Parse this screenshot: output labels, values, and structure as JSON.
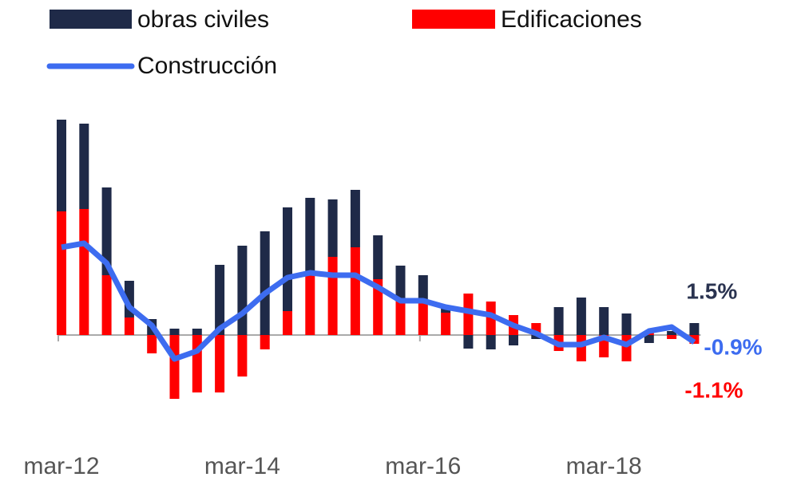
{
  "chart_data": {
    "type": "bar-line",
    "categories": [
      "mar-12",
      null,
      null,
      null,
      null,
      null,
      null,
      null,
      "mar-14",
      null,
      null,
      null,
      null,
      null,
      null,
      null,
      "mar-16",
      null,
      null,
      null,
      null,
      null,
      null,
      null,
      "mar-18",
      null,
      null,
      null,
      null
    ],
    "series": [
      {
        "name": "obras civiles",
        "color": "#1f2a48",
        "kind": "bar",
        "values": [
          11.5,
          10.7,
          11,
          4.6,
          2.0,
          0.8,
          0.8,
          8.8,
          11.2,
          13.0,
          13.0,
          9.7,
          7.2,
          7.2,
          5.5,
          4.5,
          3.5,
          0.8,
          -1.7,
          -1.8,
          -1.3,
          -0.5,
          3.5,
          4.7,
          3.5,
          2.7,
          -1.0,
          0.5,
          1.5
        ],
        "value_labels": [
          null,
          null,
          null,
          null,
          null,
          null,
          null,
          null,
          null,
          null,
          null,
          null,
          null,
          null,
          null,
          null,
          null,
          null,
          null,
          null,
          null,
          null,
          null,
          null,
          null,
          null,
          null,
          null,
          "1.5%"
        ]
      },
      {
        "name": "Edificaciones",
        "color": "#ff0000",
        "kind": "bar",
        "values": [
          15.5,
          15.8,
          7.5,
          2.2,
          -2.3,
          -8,
          -7.2,
          -7.2,
          -5.2,
          -1.8,
          3.0,
          7.5,
          9.8,
          11.0,
          7.0,
          4.2,
          4.0,
          2.8,
          5.2,
          4.2,
          2.5,
          1.5,
          -2.0,
          -3.3,
          -2.8,
          -3.3,
          0.3,
          -0.5,
          -1.1
        ],
        "value_labels": [
          null,
          null,
          null,
          null,
          null,
          null,
          null,
          null,
          null,
          null,
          null,
          null,
          null,
          null,
          null,
          null,
          null,
          null,
          null,
          null,
          null,
          null,
          null,
          null,
          null,
          null,
          null,
          null,
          "-1.1%"
        ]
      },
      {
        "name": "Construcción",
        "color": "#3d6cf0",
        "kind": "line",
        "values": [
          11,
          11.5,
          9,
          3.5,
          1.2,
          -3,
          -2,
          0.8,
          2.7,
          5.2,
          7.2,
          7.8,
          7.5,
          7.5,
          6,
          4.3,
          4.3,
          3.5,
          3,
          2.5,
          1.2,
          0.2,
          -1.2,
          -1.2,
          -0.3,
          -1.2,
          0.5,
          1.0,
          -0.9
        ],
        "value_labels": [
          null,
          null,
          null,
          null,
          null,
          null,
          null,
          null,
          null,
          null,
          null,
          null,
          null,
          null,
          null,
          null,
          null,
          null,
          null,
          null,
          null,
          null,
          null,
          null,
          null,
          null,
          null,
          null,
          "-0.9%"
        ]
      }
    ],
    "ylim": [
      -12,
      28
    ]
  }
}
